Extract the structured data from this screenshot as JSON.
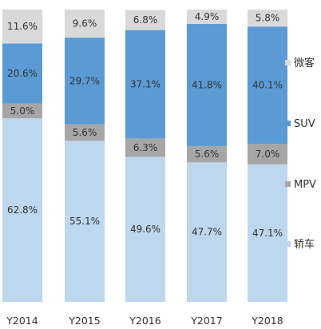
{
  "chart_data": {
    "type": "bar",
    "stacked": true,
    "categories": [
      "Y2014",
      "Y2015",
      "Y2016",
      "Y2017",
      "Y2018"
    ],
    "series": [
      {
        "name": "轿车",
        "color": "#bdd7ee",
        "values": [
          62.8,
          55.1,
          49.6,
          47.7,
          47.1
        ],
        "labels": [
          "62.8%",
          "55.1%",
          "49.6%",
          "47.7%",
          "47.1%"
        ]
      },
      {
        "name": "MPV",
        "color": "#a6a6a6",
        "values": [
          5.0,
          5.6,
          6.3,
          5.6,
          7.0
        ],
        "labels": [
          "5.0%",
          "5.6%",
          "6.3%",
          "5.6%",
          "7.0%"
        ]
      },
      {
        "name": "SUV",
        "color": "#5b9bd5",
        "values": [
          20.6,
          29.7,
          37.1,
          41.8,
          40.1
        ],
        "labels": [
          "20.6%",
          "29.7%",
          "37.1%",
          "41.8%",
          "40.1%"
        ]
      },
      {
        "name": "微客",
        "color": "#d9d9d9",
        "values": [
          11.6,
          9.6,
          6.8,
          4.9,
          5.8
        ],
        "labels": [
          "11.6%",
          "9.6%",
          "6.8%",
          "4.9%",
          "5.8%"
        ]
      }
    ],
    "legend_order": [
      "微客",
      "SUV",
      "MPV",
      "轿车"
    ],
    "legend_position": "right",
    "ylim": [
      0,
      100
    ],
    "grid": false
  }
}
